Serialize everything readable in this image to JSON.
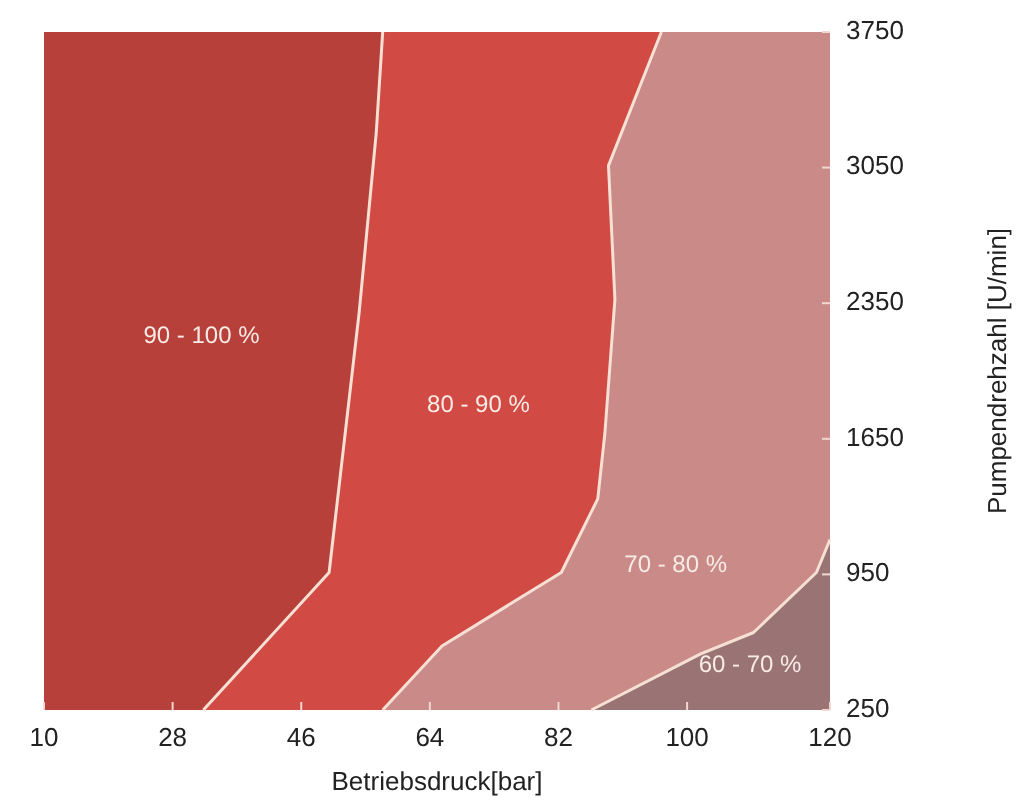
{
  "chart_data": {
    "type": "line",
    "xlabel": "Betriebsdruck[bar]",
    "ylabel": "Pumpendrehzahl [U/min]",
    "xlim": [
      10,
      120
    ],
    "xticks": [
      10,
      28,
      46,
      64,
      82,
      100,
      120
    ],
    "ylim": [
      250,
      3750
    ],
    "yticks": [
      250,
      950,
      1650,
      2350,
      3050,
      3750
    ],
    "colors": [
      "#b8403b",
      "#d24a44",
      "#c98a88",
      "#9a7474"
    ],
    "series": [
      {
        "color": "#f6e0d4",
        "x": [
          57.4,
          56.5,
          54.1,
          49.9,
          32.3
        ],
        "values": [
          3750,
          3230,
          2300,
          960,
          250
        ]
      },
      {
        "color": "#f6e0d4",
        "x": [
          96.4,
          89,
          89.9,
          88.5,
          87.5,
          82.4,
          65.7,
          57.4
        ],
        "values": [
          3750,
          3060,
          2370,
          1680,
          1340,
          960,
          580,
          250
        ]
      },
      {
        "color": "#f6e0d4",
        "x": [
          120,
          118.1,
          109.3,
          101.9,
          86.6
        ],
        "values": [
          1130,
          960,
          650,
          540,
          250
        ]
      }
    ],
    "annotations": [
      "90 - 100 %",
      "80 - 90 %",
      "70 - 80 %",
      "60 - 70 %"
    ],
    "marker": "none",
    "line_style": "solid",
    "grid": false
  }
}
